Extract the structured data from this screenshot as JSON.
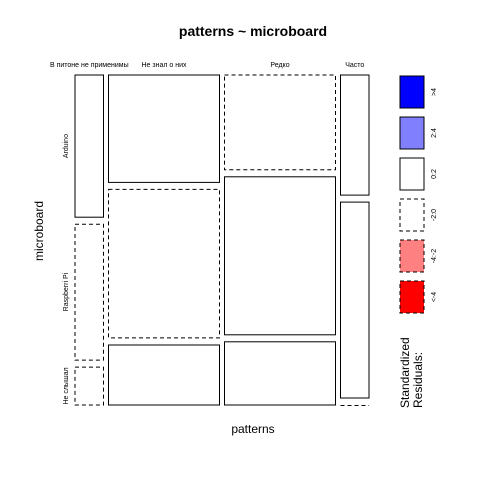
{
  "chart_data": {
    "type": "mosaic",
    "title": "patterns ~ microboard",
    "xlabel": "patterns",
    "ylabel": "microboard",
    "x_categories": [
      "В питоне не применимы",
      "Не знал о них",
      "Редко",
      "Часто"
    ],
    "y_categories": [
      "Arduino",
      "Raspberri Pi",
      "Не слышал"
    ],
    "column_widths": [
      0.095,
      0.37,
      0.37,
      0.095
    ],
    "cells": [
      [
        0.45,
        0.43,
        0.12
      ],
      [
        0.34,
        0.47,
        0.19
      ],
      [
        0.3,
        0.5,
        0.2
      ],
      [
        0.38,
        0.62,
        0.0
      ]
    ],
    "residual_category": [
      [
        "0:2",
        "-2:0",
        "-2:0"
      ],
      [
        "0:2",
        "-2:0",
        "0:2"
      ],
      [
        "-2:0",
        "0:2",
        "0:2"
      ],
      [
        "0:2",
        "0:2",
        "-2:0"
      ]
    ],
    "legend": {
      "title_line1": "Standardized",
      "title_line2": "Residuals:",
      "entries": [
        {
          "label": ">4",
          "color": "#0000ff",
          "dashed": false
        },
        {
          "label": "2:4",
          "color": "#8080ff",
          "dashed": false
        },
        {
          "label": "0:2",
          "color": "#ffffff",
          "dashed": false
        },
        {
          "label": "-2:0",
          "color": "#ffffff",
          "dashed": true
        },
        {
          "label": "-4:-2",
          "color": "#ff8080",
          "dashed": true
        },
        {
          "label": "<-4",
          "color": "#ff0000",
          "dashed": true
        }
      ]
    }
  }
}
